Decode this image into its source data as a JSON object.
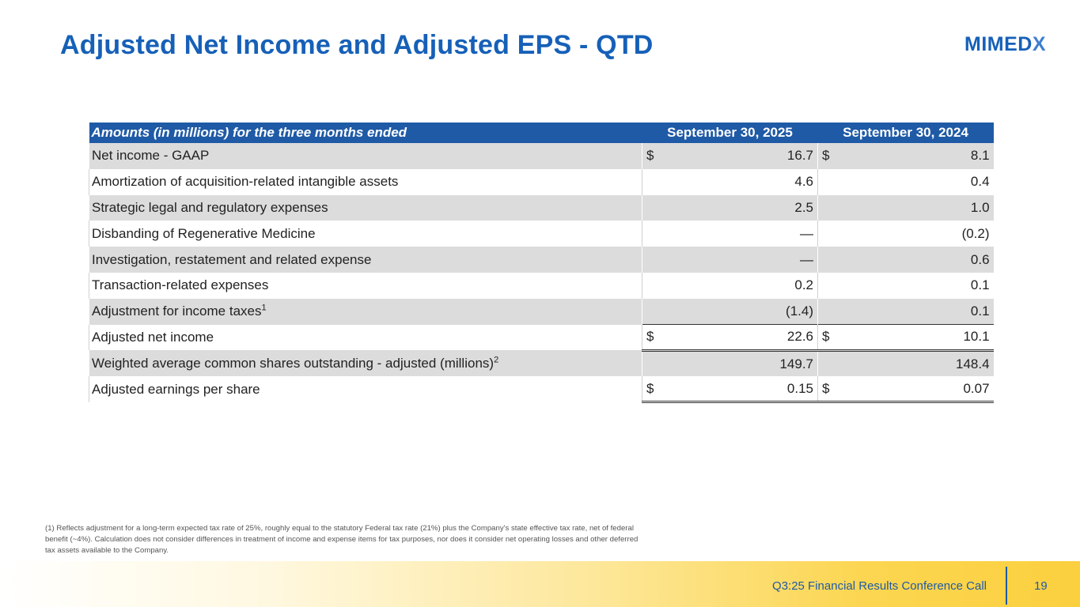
{
  "title": "Adjusted Net Income and Adjusted EPS - QTD",
  "logo": {
    "main": "MIMED",
    "accent": "X"
  },
  "table": {
    "header": {
      "label": "Amounts (in millions) for the three months ended",
      "col1": "September 30, 2025",
      "col2": "September 30, 2024"
    },
    "rows": [
      {
        "label": "Net income - GAAP",
        "sup": "",
        "cur1": "$",
        "v1": "16.7",
        "cur2": "$",
        "v2": "8.1"
      },
      {
        "label": "Amortization of acquisition-related intangible assets",
        "sup": "",
        "cur1": "",
        "v1": "4.6",
        "cur2": "",
        "v2": "0.4"
      },
      {
        "label": "Strategic legal and regulatory expenses",
        "sup": "",
        "cur1": "",
        "v1": "2.5",
        "cur2": "",
        "v2": "1.0"
      },
      {
        "label": "Disbanding of Regenerative Medicine",
        "sup": "",
        "cur1": "",
        "v1": "—",
        "cur2": "",
        "v2": "(0.2)"
      },
      {
        "label": "Investigation, restatement and related expense",
        "sup": "",
        "cur1": "",
        "v1": "—",
        "cur2": "",
        "v2": "0.6"
      },
      {
        "label": "Transaction-related expenses",
        "sup": "",
        "cur1": "",
        "v1": "0.2",
        "cur2": "",
        "v2": "0.1"
      },
      {
        "label": "Adjustment for income taxes",
        "sup": "1",
        "cur1": "",
        "v1": "(1.4)",
        "cur2": "",
        "v2": "0.1"
      },
      {
        "label": "Adjusted net income",
        "sup": "",
        "cur1": "$",
        "v1": "22.6",
        "cur2": "$",
        "v2": "10.1"
      },
      {
        "label": "Weighted average common shares outstanding - adjusted (millions)",
        "sup": "2",
        "cur1": "",
        "v1": "149.7",
        "cur2": "",
        "v2": "148.4"
      },
      {
        "label": "Adjusted earnings per share",
        "sup": "",
        "cur1": "$",
        "v1": "0.15",
        "cur2": "$",
        "v2": "0.07"
      }
    ]
  },
  "footnote": "(1) Reflects adjustment for a long-term expected tax rate of 25%, roughly equal to the statutory Federal tax rate (21%) plus the Company's state effective tax rate, net of federal benefit (~4%). Calculation does not consider differences in treatment of income and expense items for tax purposes, nor does it consider net operating losses and other deferred tax assets available to the Company.",
  "footer": {
    "text": "Q3:25 Financial Results Conference Call",
    "page": "19"
  }
}
